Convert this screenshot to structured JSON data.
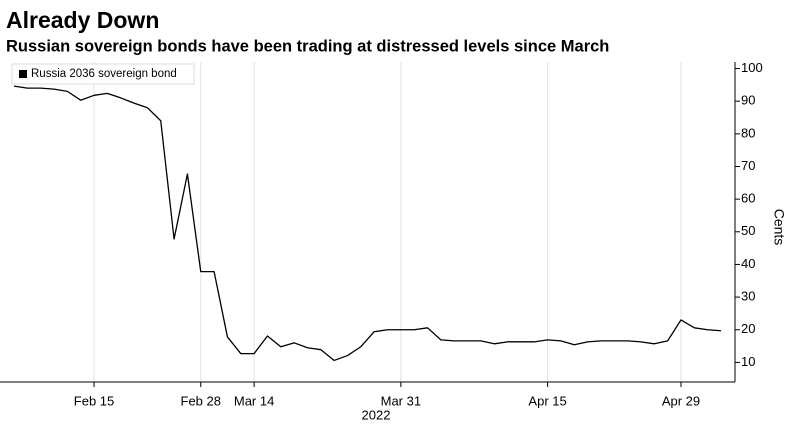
{
  "chart_data": {
    "type": "line",
    "title": "Already Down",
    "subtitle": "Russian sovereign bonds have been trading at distressed levels since March",
    "xlabel": "2022",
    "ylabel": "Cents",
    "categories": [
      null,
      null,
      null,
      null,
      null,
      null,
      "Feb 15",
      null,
      null,
      null,
      null,
      null,
      null,
      null,
      "Feb 28",
      null,
      null,
      null,
      "Mar 14",
      null,
      null,
      null,
      null,
      null,
      null,
      null,
      null,
      null,
      null,
      "Mar 31",
      null,
      null,
      null,
      null,
      null,
      null,
      null,
      null,
      null,
      null,
      "Apr 15",
      null,
      null,
      null,
      null,
      null,
      null,
      null,
      null,
      null,
      "Apr 29",
      null,
      null,
      null
    ],
    "series": [
      {
        "name": "Russia 2036 sovereign bond",
        "color": "#000000",
        "values": [
          94.6,
          94,
          94,
          93.7,
          93,
          90.3,
          91.8,
          92.4,
          91,
          89.4,
          88,
          84,
          47.8,
          67.7,
          37.8,
          37.8,
          17.8,
          12.7,
          12.7,
          18.1,
          14.8,
          16,
          14.5,
          13.9,
          10.6,
          12.1,
          14.8,
          19.4,
          20,
          20,
          20,
          20.6,
          16.9,
          16.6,
          16.6,
          16.6,
          15.7,
          16.3,
          16.3,
          16.3,
          16.9,
          16.6,
          15.4,
          16.3,
          16.6,
          16.6,
          16.6,
          16.3,
          15.7,
          16.6,
          23,
          20.6,
          20,
          19.7
        ]
      }
    ],
    "ylim": [
      4,
      102
    ],
    "yticks": [
      10,
      20,
      30,
      40,
      50,
      60,
      70,
      80,
      90,
      100
    ],
    "grid": true,
    "legend": "upper left"
  }
}
